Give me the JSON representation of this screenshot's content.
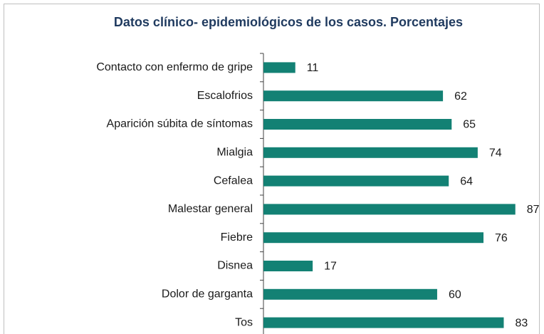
{
  "chart_data": {
    "type": "bar",
    "orientation": "horizontal",
    "title": "Datos clínico- epidemiológicos de los casos. Porcentajes",
    "categories": [
      "Contacto con enfermo de gripe",
      "Escalofrios",
      "Aparición súbita de síntomas",
      "Mialgia",
      "Cefalea",
      "Malestar general",
      "Fiebre",
      "Disnea",
      "Dolor de garganta",
      "Tos"
    ],
    "values": [
      11,
      62,
      65,
      74,
      64,
      87,
      76,
      17,
      60,
      83
    ],
    "color": "#138174",
    "xlim": [
      0,
      90
    ]
  }
}
